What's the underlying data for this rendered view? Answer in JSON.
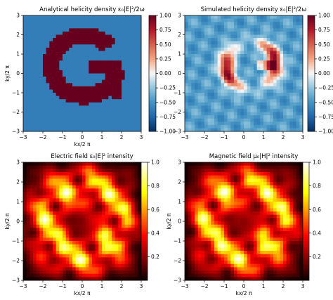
{
  "chart_data": [
    {
      "type": "heatmap",
      "title": "Analytical helicity density ε₀|E|²/2ω",
      "xlabel": "kx/2 π",
      "ylabel": "ky/2 π",
      "xlim": [
        -3,
        3
      ],
      "ylim": [
        -3,
        3
      ],
      "x_ticks": [
        "−3",
        "−2",
        "−1",
        "0",
        "1",
        "2",
        "3"
      ],
      "y_ticks": [
        "−3",
        "−2",
        "−1",
        "0",
        "1",
        "2",
        "3"
      ],
      "colormap": "RdBu_r",
      "colorbar_range": [
        -1.0,
        1.0
      ],
      "colorbar_ticks": [
        "−1.00",
        "−0.75",
        "−0.50",
        "−0.25",
        "0.00",
        "0.25",
        "0.50",
        "0.75",
        "1.00"
      ],
      "description": "letter G pattern at +1.00 on a background of about −0.6"
    },
    {
      "type": "heatmap",
      "title": "Simulated helicity density ε₀|E|²/2ω",
      "xlabel": "",
      "ylabel": "",
      "xlim": [
        -3,
        3
      ],
      "ylim": [
        -3,
        3
      ],
      "x_ticks": [
        "−3",
        "−2",
        "−1",
        "0",
        "1",
        "2",
        "3"
      ],
      "y_ticks": [
        "−3",
        "−2",
        "−1",
        "0",
        "1",
        "2",
        "3"
      ],
      "colormap": "RdBu_r",
      "colorbar_range": [
        -1.0,
        1.0
      ],
      "colorbar_ticks": [
        "−1.00",
        "−0.75",
        "−0.50",
        "−0.25",
        "0.00",
        "0.25",
        "0.50",
        "0.75",
        "1.00"
      ],
      "description": "blurred G shaped ring of positive values on mostly negative background"
    },
    {
      "type": "heatmap",
      "title": "Electric field ε₀|E|² intensity",
      "xlabel": "kx/2 π",
      "ylabel": "ky/2 π",
      "xlim": [
        -3,
        3
      ],
      "ylim": [
        -3,
        3
      ],
      "x_ticks": [
        "−3",
        "−2",
        "−1",
        "0",
        "1",
        "2",
        "3"
      ],
      "y_ticks": [
        "−3",
        "−2",
        "−1",
        "0",
        "1",
        "2",
        "3"
      ],
      "colormap": "hot",
      "colorbar_range": [
        0.0,
        1.0
      ],
      "colorbar_ticks": [
        "0.2",
        "0.4",
        "0.6",
        "0.8",
        "1.0"
      ]
    },
    {
      "type": "heatmap",
      "title": "Magnetic field μ₀|H|² intensity",
      "xlabel": "kx/2 π",
      "ylabel": "ky/2 π",
      "xlim": [
        -3,
        3
      ],
      "ylim": [
        -3,
        3
      ],
      "x_ticks": [
        "−3",
        "−2",
        "−1",
        "0",
        "1",
        "2",
        "3"
      ],
      "y_ticks": [
        "−3",
        "−2",
        "−1",
        "0",
        "1",
        "2",
        "3"
      ],
      "colormap": "hot",
      "colorbar_range": [
        0.0,
        1.0
      ],
      "colorbar_ticks": [
        "0.2",
        "0.4",
        "0.6",
        "0.8",
        "1.0"
      ]
    }
  ]
}
